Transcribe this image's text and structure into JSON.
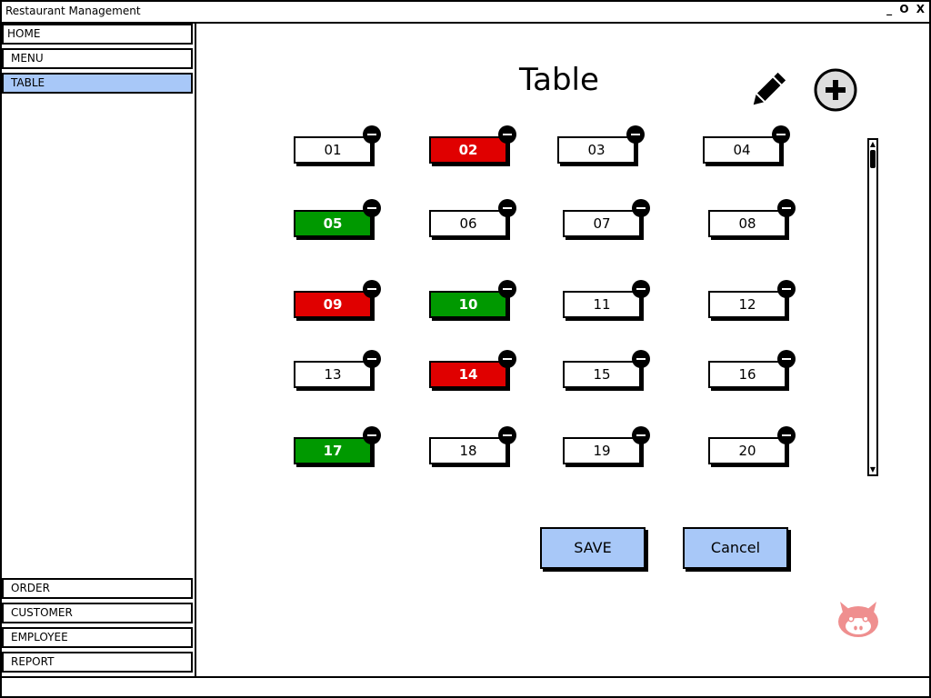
{
  "window": {
    "title": "Restaurant Management",
    "controls": [
      "_",
      "O",
      "X"
    ]
  },
  "sidebar": {
    "items": [
      {
        "label": "HOME",
        "active": false
      },
      {
        "label": "MENU",
        "active": false
      },
      {
        "label": "TABLE",
        "active": true
      }
    ],
    "bottom_items": [
      {
        "label": "ORDER"
      },
      {
        "label": "CUSTOMER"
      },
      {
        "label": "EMPLOYEE"
      },
      {
        "label": "REPORT"
      }
    ]
  },
  "main": {
    "title": "Table",
    "tables": [
      {
        "label": "01",
        "status": "free"
      },
      {
        "label": "02",
        "status": "red"
      },
      {
        "label": "03",
        "status": "free"
      },
      {
        "label": "04",
        "status": "free"
      },
      {
        "label": "05",
        "status": "green"
      },
      {
        "label": "06",
        "status": "free"
      },
      {
        "label": "07",
        "status": "free"
      },
      {
        "label": "08",
        "status": "free"
      },
      {
        "label": "09",
        "status": "red"
      },
      {
        "label": "10",
        "status": "green"
      },
      {
        "label": "11",
        "status": "free"
      },
      {
        "label": "12",
        "status": "free"
      },
      {
        "label": "13",
        "status": "free"
      },
      {
        "label": "14",
        "status": "red"
      },
      {
        "label": "15",
        "status": "free"
      },
      {
        "label": "16",
        "status": "free"
      },
      {
        "label": "17",
        "status": "green"
      },
      {
        "label": "18",
        "status": "free"
      },
      {
        "label": "19",
        "status": "free"
      },
      {
        "label": "20",
        "status": "free"
      }
    ],
    "buttons": {
      "save_label": "SAVE",
      "cancel_label": "Cancel"
    }
  },
  "icons": {
    "edit": "pencil-icon",
    "add": "plus-circle-icon",
    "remove": "minus-circle-icon",
    "mascot": "octocat-icon"
  },
  "colors": {
    "accent": "#a8c8f8",
    "occupied": "#e00000",
    "available": "#009900",
    "mascot": "#ef8f8f"
  }
}
